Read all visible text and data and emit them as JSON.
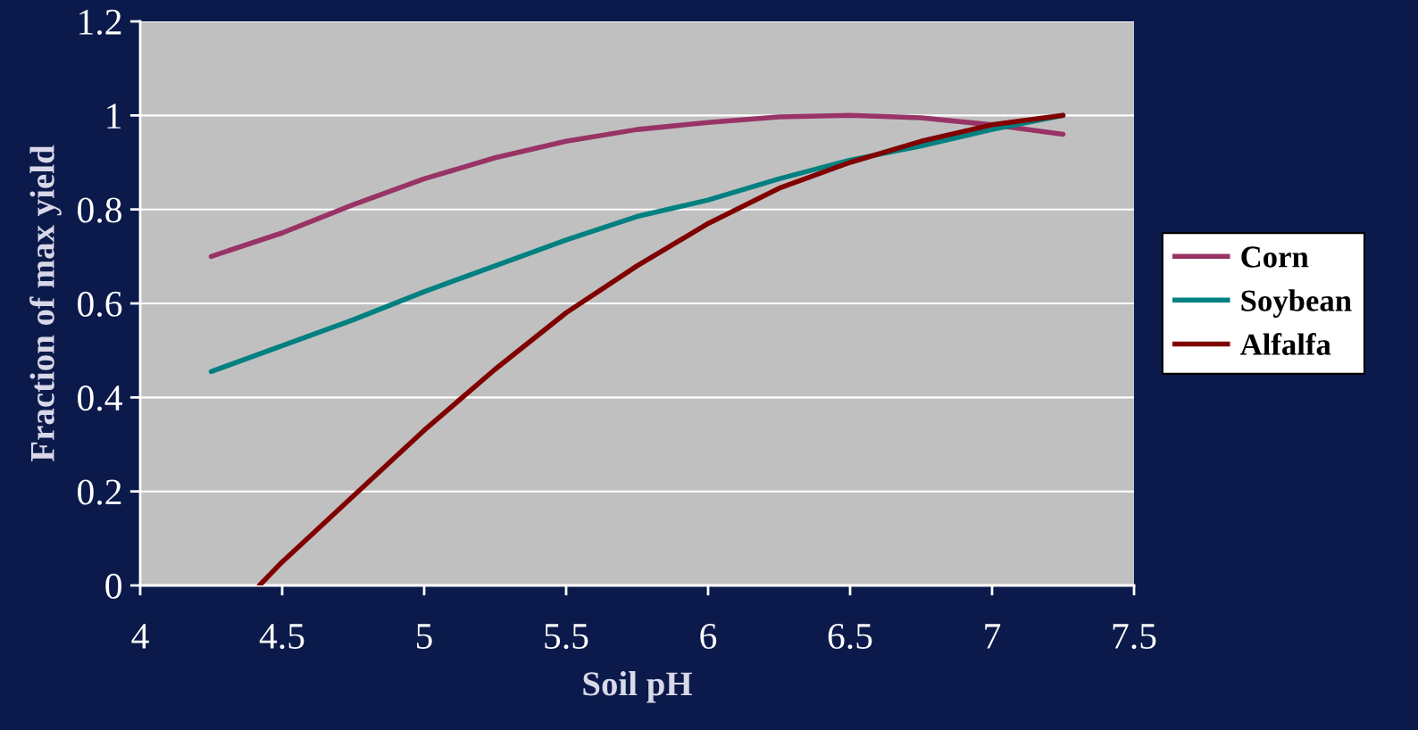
{
  "chart_data": {
    "type": "line",
    "xlabel": "Soil pH",
    "ylabel": "Fraction of max yield",
    "xlim": [
      4,
      7.5
    ],
    "xticks": [
      4,
      4.5,
      5,
      5.5,
      6,
      6.5,
      7,
      7.5
    ],
    "ylim": [
      0,
      1.2
    ],
    "yticks": [
      0,
      0.2,
      0.4,
      0.6,
      0.8,
      1,
      1.2
    ],
    "grid": "y",
    "legend": "right",
    "marker": "none",
    "line_style": "solid",
    "series": [
      {
        "name": "Corn",
        "color": "#993366",
        "x": [
          4.25,
          4.5,
          4.75,
          5.0,
          5.25,
          5.5,
          5.75,
          6.0,
          6.25,
          6.5,
          6.75,
          7.0,
          7.25
        ],
        "values": [
          0.7,
          0.75,
          0.81,
          0.865,
          0.91,
          0.945,
          0.97,
          0.985,
          0.997,
          1.0,
          0.995,
          0.98,
          0.96
        ]
      },
      {
        "name": "Soybean",
        "color": "#008080",
        "x": [
          4.25,
          4.5,
          4.75,
          5.0,
          5.25,
          5.5,
          5.75,
          6.0,
          6.25,
          6.5,
          6.75,
          7.0,
          7.25
        ],
        "values": [
          0.455,
          0.51,
          0.565,
          0.625,
          0.68,
          0.735,
          0.785,
          0.82,
          0.865,
          0.905,
          0.935,
          0.97,
          1.0
        ]
      },
      {
        "name": "Alfalfa",
        "color": "#800000",
        "x": [
          4.42,
          4.5,
          4.75,
          5.0,
          5.25,
          5.5,
          5.75,
          6.0,
          6.25,
          6.5,
          6.75,
          7.0,
          7.25
        ],
        "values": [
          0.0,
          0.05,
          0.19,
          0.33,
          0.46,
          0.58,
          0.68,
          0.77,
          0.845,
          0.9,
          0.945,
          0.98,
          1.0
        ]
      }
    ]
  }
}
